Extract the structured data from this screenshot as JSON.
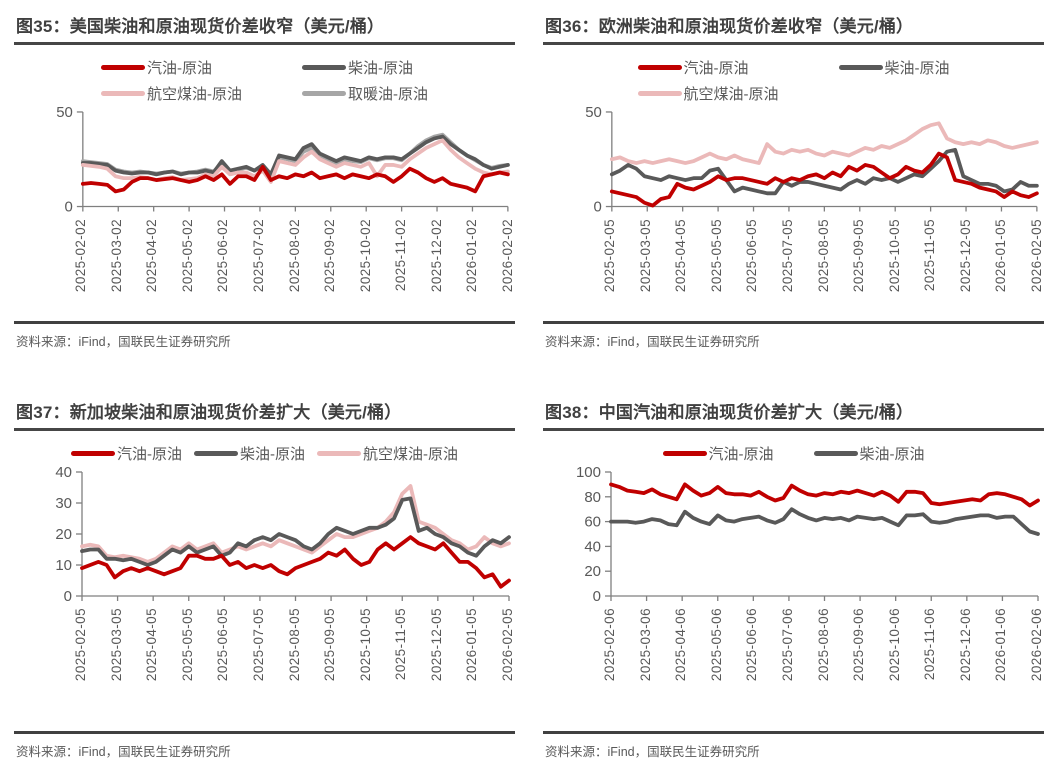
{
  "page_title": "价差图表",
  "colors": {
    "red": "#C00000",
    "dark_gray": "#595959",
    "pink": "#EBB9B9",
    "light_gray": "#A6A6A6",
    "axis": "#7F7F7F",
    "axis_label": "#595959",
    "title_text": "#404040",
    "rule": "#464646",
    "source_text": "#595959"
  },
  "chart_data": [
    {
      "id": "fig35",
      "type": "line",
      "title": "图35：美国柴油和原油现货价差收窄（美元/桶）",
      "source": "资料来源：iFind，国联民生证券研究所",
      "ylim": [
        0,
        50
      ],
      "yticks": [
        0,
        50
      ],
      "grid": false,
      "legend_position": "top-center",
      "legend_cols": 2,
      "legend_col_gap": 60,
      "x_tick_labels": [
        "2025-02-02",
        "2025-03-02",
        "2025-04-02",
        "2025-05-02",
        "2025-06-02",
        "2025-07-02",
        "2025-08-02",
        "2025-09-02",
        "2025-10-02",
        "2025-11-02",
        "2025-12-02",
        "2026-01-02",
        "2026-02-02"
      ],
      "draw_order": [
        3,
        1,
        2,
        0
      ],
      "series": [
        {
          "name": "汽油-原油",
          "color": "#C00000",
          "values": [
            12,
            12.5,
            12,
            11.5,
            8,
            9,
            13,
            15,
            15,
            14,
            14.5,
            15,
            14,
            13,
            14,
            16,
            14,
            17,
            12,
            16,
            16,
            14,
            21,
            14,
            16,
            15,
            17,
            16,
            18,
            15,
            16,
            17,
            15,
            17,
            16,
            15,
            17,
            16,
            13,
            16,
            20,
            18,
            15,
            13,
            15,
            12,
            11,
            10,
            8,
            16,
            17,
            18,
            17
          ]
        },
        {
          "name": "柴油-原油",
          "color": "#595959",
          "values": [
            23,
            23,
            22.5,
            22,
            19,
            18,
            17.5,
            18,
            18,
            17,
            18,
            18.5,
            17,
            18,
            18,
            19,
            18,
            24,
            19,
            20,
            21,
            19,
            22,
            17,
            27,
            26,
            25,
            31,
            33,
            28,
            26,
            24,
            26,
            25,
            24,
            26,
            25,
            26,
            26,
            25,
            28,
            31,
            34,
            36,
            37,
            33,
            30,
            27,
            25,
            22,
            20,
            21,
            22
          ]
        },
        {
          "name": "航空煤油-原油",
          "color": "#EBB9B9",
          "values": [
            22,
            21.5,
            21,
            20,
            16,
            15,
            15,
            15.5,
            15,
            14,
            15,
            15.5,
            14,
            14.5,
            15,
            17,
            16,
            21,
            17,
            18,
            18,
            16,
            19,
            13,
            24,
            23,
            22,
            26,
            29,
            25,
            23,
            21,
            23,
            22,
            21,
            23,
            16,
            22,
            22,
            21,
            25,
            28,
            31,
            33,
            35,
            30,
            26,
            23,
            20,
            18,
            17,
            18,
            18.5
          ]
        },
        {
          "name": "取暖油-原油",
          "color": "#A6A6A6",
          "values": [
            24,
            23.5,
            23,
            22.5,
            19.5,
            18.5,
            18,
            18.5,
            18,
            17.5,
            18,
            18.5,
            17.5,
            18,
            18.5,
            19.5,
            18.5,
            23,
            18.5,
            19.5,
            20.5,
            19,
            21.5,
            16.5,
            26,
            25,
            24,
            29,
            31,
            27,
            25,
            23,
            25,
            24,
            23.5,
            25.5,
            24.5,
            25.5,
            25.5,
            24.5,
            28,
            32,
            35,
            37,
            38,
            34,
            30,
            27,
            24.5,
            22,
            20.5,
            21.5,
            22
          ]
        }
      ]
    },
    {
      "id": "fig36",
      "type": "line",
      "title": "图36：欧洲柴油和原油现货价差收窄（美元/桶）",
      "source": "资料来源：iFind，国联民生证券研究所",
      "ylim": [
        0,
        50
      ],
      "yticks": [
        0,
        50
      ],
      "grid": false,
      "legend_position": "top-center",
      "legend_cols": 2,
      "legend_col_gap": 60,
      "x_tick_labels": [
        "2025-02-05",
        "2025-03-05",
        "2025-04-05",
        "2025-05-05",
        "2025-06-05",
        "2025-07-05",
        "2025-08-05",
        "2025-09-05",
        "2025-10-05",
        "2025-11-05",
        "2025-12-05",
        "2026-01-05",
        "2026-02-05"
      ],
      "draw_order": [
        2,
        1,
        0
      ],
      "series": [
        {
          "name": "汽油-原油",
          "color": "#C00000",
          "values": [
            8,
            7,
            6,
            5,
            2,
            0.5,
            4,
            5,
            12,
            10,
            9,
            11,
            13,
            16,
            14,
            15,
            15,
            14,
            13,
            12,
            15,
            13,
            15,
            14,
            16,
            17,
            15,
            18,
            16,
            21,
            19,
            22,
            21,
            18,
            15,
            17,
            21,
            19,
            18,
            22,
            28,
            26,
            14,
            13,
            12,
            10,
            9,
            8,
            5,
            8,
            6,
            5,
            7
          ]
        },
        {
          "name": "柴油-原油",
          "color": "#595959",
          "values": [
            17,
            19,
            22,
            20,
            16,
            15,
            14,
            16,
            15,
            14,
            15,
            15,
            19,
            20,
            14,
            8,
            10,
            9,
            8,
            7,
            7,
            13,
            11,
            13,
            13,
            12,
            11,
            10,
            9,
            12,
            14,
            12,
            15,
            14,
            15,
            13,
            15,
            17,
            16,
            20,
            24,
            29,
            30,
            16,
            14,
            12,
            12,
            11,
            8,
            9,
            13,
            11,
            11
          ]
        },
        {
          "name": "航空煤油-原油",
          "color": "#EBB9B9",
          "values": [
            25,
            26,
            24,
            23,
            24,
            23,
            24,
            25,
            24,
            23,
            24,
            26,
            28,
            26,
            25,
            27,
            25,
            24,
            23,
            33,
            29,
            28,
            30,
            29,
            30,
            28,
            27,
            29,
            28,
            27,
            29,
            31,
            30,
            32,
            31,
            33,
            35,
            38,
            41,
            43,
            44,
            36,
            34,
            33,
            34,
            33,
            35,
            34,
            32,
            31,
            32,
            33,
            34
          ]
        }
      ]
    },
    {
      "id": "fig37",
      "type": "line",
      "title": "图37：新加坡柴油和原油现货价差扩大（美元/桶）",
      "source": "资料来源：iFind，国联民生证券研究所",
      "ylim": [
        0,
        40
      ],
      "yticks": [
        0,
        10,
        20,
        30,
        40
      ],
      "grid": false,
      "legend_position": "top-center",
      "legend_cols": 3,
      "legend_col_gap": 12,
      "x_tick_labels": [
        "2025-02-05",
        "2025-03-05",
        "2025-04-05",
        "2025-05-05",
        "2025-06-05",
        "2025-07-05",
        "2025-08-05",
        "2025-09-05",
        "2025-10-05",
        "2025-11-05",
        "2025-12-05",
        "2026-01-05",
        "2026-02-05"
      ],
      "draw_order": [
        2,
        1,
        0
      ],
      "series": [
        {
          "name": "汽油-原油",
          "color": "#C00000",
          "values": [
            9,
            10,
            11,
            10,
            6,
            8,
            9,
            8,
            9,
            8,
            7,
            8,
            9,
            13,
            13,
            12,
            12,
            13,
            10,
            11,
            9,
            10,
            9,
            10,
            8,
            7,
            9,
            10,
            11,
            12,
            14,
            13,
            15,
            12,
            10,
            11,
            15,
            17,
            15,
            17,
            19,
            17,
            16,
            15,
            17,
            14,
            11,
            11,
            9,
            6,
            7,
            3,
            5
          ]
        },
        {
          "name": "柴油-原油",
          "color": "#595959",
          "values": [
            14.5,
            15,
            15,
            12,
            12,
            11.5,
            12,
            11,
            10,
            11,
            13,
            15,
            14,
            16,
            14,
            15,
            16,
            13,
            14,
            17,
            16,
            18,
            19,
            18,
            20,
            19,
            18,
            16,
            15,
            17,
            20,
            22,
            21,
            20,
            21,
            22,
            22,
            23,
            25,
            31,
            31.5,
            21,
            22,
            20,
            19,
            17,
            16,
            14,
            13,
            16,
            18,
            17,
            19
          ]
        },
        {
          "name": "航空煤油-原油",
          "color": "#EBB9B9",
          "values": [
            16,
            16.5,
            16,
            13,
            12.5,
            13,
            12.5,
            12,
            11,
            12,
            14,
            16,
            15,
            17,
            15,
            16,
            17,
            14,
            15,
            16,
            15,
            16,
            17,
            16,
            18,
            17,
            16,
            15,
            14,
            16,
            18,
            20,
            19,
            19,
            20,
            21,
            22,
            24,
            27,
            33,
            35.5,
            24,
            23,
            22,
            20,
            18,
            17,
            15,
            16,
            19,
            17,
            16,
            17
          ]
        }
      ]
    },
    {
      "id": "fig38",
      "type": "line",
      "title": "图38：中国汽油和原油现货价差扩大（美元/桶）",
      "source": "资料来源：iFind，国联民生证券研究所",
      "ylim": [
        0,
        100
      ],
      "yticks": [
        0,
        20,
        40,
        60,
        80,
        100
      ],
      "grid": false,
      "legend_position": "top-center",
      "legend_cols": 2,
      "legend_col_gap": 40,
      "x_tick_labels": [
        "2025-02-06",
        "2025-03-06",
        "2025-04-06",
        "2025-05-06",
        "2025-06-06",
        "2025-07-06",
        "2025-08-06",
        "2025-09-06",
        "2025-10-06",
        "2025-11-06",
        "2025-12-06",
        "2026-01-06",
        "2026-02-06"
      ],
      "draw_order": [
        1,
        0
      ],
      "series": [
        {
          "name": "汽油-原油",
          "color": "#C00000",
          "values": [
            90,
            88,
            85,
            84,
            83,
            86,
            82,
            80,
            78,
            90,
            85,
            81,
            83,
            88,
            83,
            82,
            82,
            81,
            84,
            80,
            77,
            79,
            89,
            85,
            82,
            81,
            83,
            82,
            84,
            83,
            85,
            83,
            81,
            84,
            81,
            76,
            84,
            84,
            83,
            75,
            74,
            75,
            76,
            77,
            78,
            77,
            82,
            83,
            82,
            80,
            78,
            73,
            77
          ]
        },
        {
          "name": "柴油-原油",
          "color": "#595959",
          "values": [
            60,
            60,
            60,
            59,
            60,
            62,
            61,
            58,
            57,
            68,
            63,
            60,
            58,
            65,
            61,
            60,
            62,
            63,
            64,
            61,
            59,
            62,
            70,
            66,
            63,
            61,
            63,
            62,
            63,
            61,
            64,
            63,
            62,
            63,
            60,
            57,
            65,
            65,
            66,
            60,
            59,
            60,
            62,
            63,
            64,
            65,
            65,
            63,
            64,
            64,
            58,
            52,
            50
          ]
        }
      ]
    }
  ]
}
